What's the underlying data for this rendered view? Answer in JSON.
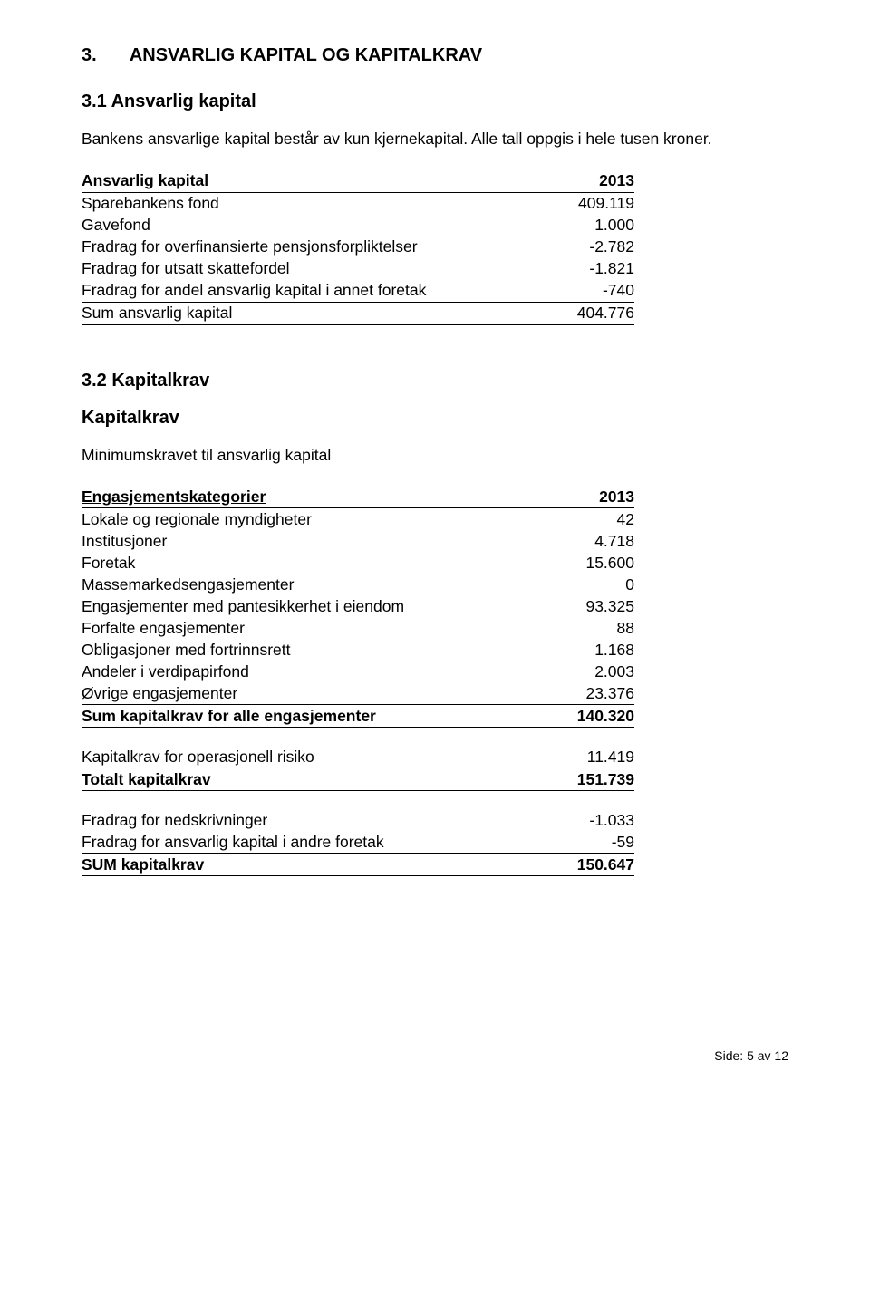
{
  "heading": {
    "number": "3.",
    "title": "ANSVARLIG KAPITAL OG KAPITALKRAV"
  },
  "sub1": {
    "title": "3.1 Ansvarlig kapital",
    "intro": "Bankens ansvarlige kapital består av kun kjernekapital. Alle tall oppgis i hele tusen kroner.",
    "table": {
      "header": {
        "label": "Ansvarlig kapital",
        "val": "2013"
      },
      "rows": [
        {
          "label": "Sparebankens fond",
          "val": "409.119"
        },
        {
          "label": "Gavefond",
          "val": "1.000"
        },
        {
          "label": "Fradrag for overfinansierte pensjonsforpliktelser",
          "val": "-2.782"
        },
        {
          "label": "Fradrag for utsatt skattefordel",
          "val": "-1.821"
        },
        {
          "label": "Fradrag for andel ansvarlig kapital i annet foretak",
          "val": "-740"
        }
      ],
      "sum": {
        "label": "Sum ansvarlig kapital",
        "val": "404.776"
      }
    }
  },
  "sub2": {
    "title": "3.2 Kapitalkrav",
    "subhead": "Kapitalkrav",
    "intro": "Minimumskravet til ansvarlig kapital",
    "table1": {
      "header": {
        "label": "Engasjementskategorier",
        "val": "2013"
      },
      "rows": [
        {
          "label": "Lokale og regionale myndigheter",
          "val": "42"
        },
        {
          "label": "Institusjoner",
          "val": "4.718"
        },
        {
          "label": "Foretak",
          "val": "15.600"
        },
        {
          "label": "Massemarkedsengasjementer",
          "val": "0"
        },
        {
          "label": "Engasjementer med pantesikkerhet i eiendom",
          "val": "93.325"
        },
        {
          "label": "Forfalte engasjementer",
          "val": "88"
        },
        {
          "label": "Obligasjoner med fortrinnsrett",
          "val": "1.168"
        },
        {
          "label": "Andeler i verdipapirfond",
          "val": "2.003"
        },
        {
          "label": "Øvrige engasjementer",
          "val": "23.376"
        }
      ],
      "sum": {
        "label": "Sum kapitalkrav for alle engasjementer",
        "val": "140.320"
      }
    },
    "table2": {
      "rows": [
        {
          "label": "Kapitalkrav for operasjonell risiko",
          "val": "11.419"
        }
      ],
      "sum": {
        "label": "Totalt kapitalkrav",
        "val": "151.739"
      }
    },
    "table3": {
      "rows": [
        {
          "label": "Fradrag for nedskrivninger",
          "val": "-1.033"
        },
        {
          "label": "Fradrag for ansvarlig kapital i andre foretak",
          "val": "-59"
        }
      ],
      "sum": {
        "label": "SUM kapitalkrav",
        "val": "150.647"
      }
    }
  },
  "footer": "Side: 5 av 12"
}
